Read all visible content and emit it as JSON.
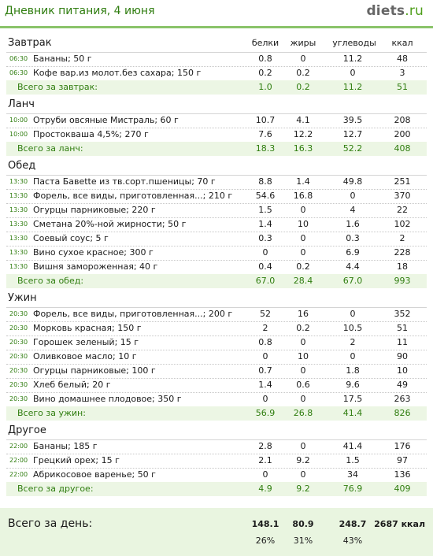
{
  "header": {
    "title": "Дневник питания, 4 июня",
    "logo_main": "diets",
    "logo_suffix": ".ru"
  },
  "columns": [
    "белки",
    "жиры",
    "углеводы",
    "ккал"
  ],
  "sections": [
    {
      "title": "Завтрак",
      "items": [
        {
          "time": "06:30",
          "name": "Бананы; 50 г",
          "b": "0.8",
          "f": "0",
          "c": "11.2",
          "k": "48"
        },
        {
          "time": "06:30",
          "name": "Кофе вар.из молот.без сахара; 150 г",
          "b": "0.2",
          "f": "0.2",
          "c": "0",
          "k": "3"
        }
      ],
      "total": {
        "label": "Всего за завтрак:",
        "b": "1.0",
        "f": "0.2",
        "c": "11.2",
        "k": "51"
      }
    },
    {
      "title": "Ланч",
      "items": [
        {
          "time": "10:00",
          "name": "Отруби овсяные Мистраль; 60 г",
          "b": "10.7",
          "f": "4.1",
          "c": "39.5",
          "k": "208"
        },
        {
          "time": "10:00",
          "name": "Простокваша 4,5%; 270 г",
          "b": "7.6",
          "f": "12.2",
          "c": "12.7",
          "k": "200"
        }
      ],
      "total": {
        "label": "Всего за ланч:",
        "b": "18.3",
        "f": "16.3",
        "c": "52.2",
        "k": "408"
      }
    },
    {
      "title": "Обед",
      "items": [
        {
          "time": "13:30",
          "name": "Паста Бавette из тв.сорт.пшеницы; 70 г",
          "b": "8.8",
          "f": "1.4",
          "c": "49.8",
          "k": "251"
        },
        {
          "time": "13:30",
          "name": "Форель, все виды, приготовленная...; 210 г",
          "b": "54.6",
          "f": "16.8",
          "c": "0",
          "k": "370"
        },
        {
          "time": "13:30",
          "name": "Огурцы парниковые; 220 г",
          "b": "1.5",
          "f": "0",
          "c": "4",
          "k": "22"
        },
        {
          "time": "13:30",
          "name": "Сметана 20%-ной жирности; 50 г",
          "b": "1.4",
          "f": "10",
          "c": "1.6",
          "k": "102"
        },
        {
          "time": "13:30",
          "name": "Соевый соус; 5 г",
          "b": "0.3",
          "f": "0",
          "c": "0.3",
          "k": "2"
        },
        {
          "time": "13:30",
          "name": "Вино сухое красное; 300 г",
          "b": "0",
          "f": "0",
          "c": "6.9",
          "k": "228"
        },
        {
          "time": "13:30",
          "name": "Вишня замороженная; 40 г",
          "b": "0.4",
          "f": "0.2",
          "c": "4.4",
          "k": "18"
        }
      ],
      "total": {
        "label": "Всего за обед:",
        "b": "67.0",
        "f": "28.4",
        "c": "67.0",
        "k": "993"
      }
    },
    {
      "title": "Ужин",
      "items": [
        {
          "time": "20:30",
          "name": "Форель, все виды, приготовленная...; 200 г",
          "b": "52",
          "f": "16",
          "c": "0",
          "k": "352"
        },
        {
          "time": "20:30",
          "name": "Морковь красная; 150 г",
          "b": "2",
          "f": "0.2",
          "c": "10.5",
          "k": "51"
        },
        {
          "time": "20:30",
          "name": "Горошек зеленый; 15 г",
          "b": "0.8",
          "f": "0",
          "c": "2",
          "k": "11"
        },
        {
          "time": "20:30",
          "name": "Оливковое масло; 10 г",
          "b": "0",
          "f": "10",
          "c": "0",
          "k": "90"
        },
        {
          "time": "20:30",
          "name": "Огурцы парниковые; 100 г",
          "b": "0.7",
          "f": "0",
          "c": "1.8",
          "k": "10"
        },
        {
          "time": "20:30",
          "name": "Хлеб белый; 20 г",
          "b": "1.4",
          "f": "0.6",
          "c": "9.6",
          "k": "49"
        },
        {
          "time": "20:30",
          "name": "Вино домашнее плодовое; 350 г",
          "b": "0",
          "f": "0",
          "c": "17.5",
          "k": "263"
        }
      ],
      "total": {
        "label": "Всего за ужин:",
        "b": "56.9",
        "f": "26.8",
        "c": "41.4",
        "k": "826"
      }
    },
    {
      "title": "Другое",
      "items": [
        {
          "time": "22:00",
          "name": "Бананы; 185 г",
          "b": "2.8",
          "f": "0",
          "c": "41.4",
          "k": "176"
        },
        {
          "time": "22:00",
          "name": "Грецкий орех; 15 г",
          "b": "2.1",
          "f": "9.2",
          "c": "1.5",
          "k": "97"
        },
        {
          "time": "22:00",
          "name": "Абрикосовое варенье; 50 г",
          "b": "0",
          "f": "0",
          "c": "34",
          "k": "136"
        }
      ],
      "total": {
        "label": "Всего за другое:",
        "b": "4.9",
        "f": "9.2",
        "c": "76.9",
        "k": "409"
      }
    }
  ],
  "day_total": {
    "label": "Всего за день:",
    "b": "148.1",
    "f": "80.9",
    "c": "248.7",
    "k": "2687 ккал",
    "pb": "26%",
    "pf": "31%",
    "pc": "43%"
  }
}
